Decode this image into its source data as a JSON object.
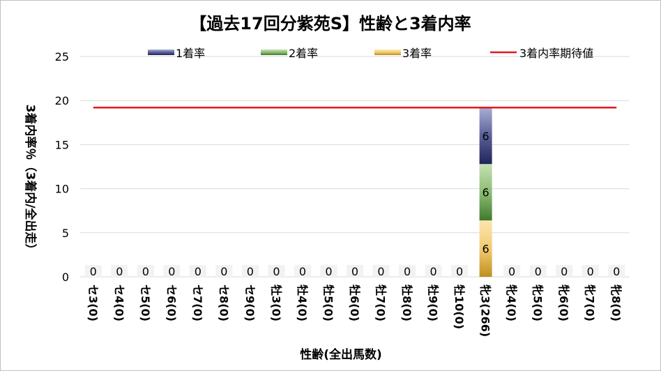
{
  "chart_data": {
    "type": "bar",
    "stacked": true,
    "title": "【過去17回分紫苑S】性齢と3着内率",
    "ylabel": "3着内率％（3着内/全出走）",
    "xlabel": "性齢(全出馬数)",
    "ylim": [
      0,
      25
    ],
    "yticks": [
      0,
      5,
      10,
      15,
      20,
      25
    ],
    "grid": true,
    "legend_position": "top",
    "categories": [
      "セ3(0)",
      "セ4(0)",
      "セ5(0)",
      "セ6(0)",
      "セ7(0)",
      "セ8(0)",
      "セ9(0)",
      "牡3(0)",
      "牡4(0)",
      "牡5(0)",
      "牡6(0)",
      "牡7(0)",
      "牡8(0)",
      "牡9(0)",
      "牡10(0)",
      "牝3(266)",
      "牝4(0)",
      "牝5(0)",
      "牝6(0)",
      "牝7(0)",
      "牝8(0)"
    ],
    "series": [
      {
        "name": "3着率",
        "color": "#d9a32b",
        "values": [
          0,
          0,
          0,
          0,
          0,
          0,
          0,
          0,
          0,
          0,
          0,
          0,
          0,
          0,
          0,
          6.4,
          0,
          0,
          0,
          0,
          0
        ],
        "labels": [
          "0",
          "0",
          "0",
          "0",
          "0",
          "0",
          "0",
          "0",
          "0",
          "0",
          "0",
          "0",
          "0",
          "0",
          "0",
          "6",
          "0",
          "0",
          "0",
          "0",
          "0"
        ]
      },
      {
        "name": "2着率",
        "color": "#6aa84f",
        "values": [
          0,
          0,
          0,
          0,
          0,
          0,
          0,
          0,
          0,
          0,
          0,
          0,
          0,
          0,
          0,
          6.4,
          0,
          0,
          0,
          0,
          0
        ],
        "labels": [
          "",
          "",
          "",
          "",
          "",
          "",
          "",
          "",
          "",
          "",
          "",
          "",
          "",
          "",
          "",
          "6",
          "",
          "",
          "",
          "",
          ""
        ]
      },
      {
        "name": "1着率",
        "color": "#4a5490",
        "values": [
          0,
          0,
          0,
          0,
          0,
          0,
          0,
          0,
          0,
          0,
          0,
          0,
          0,
          0,
          0,
          6.4,
          0,
          0,
          0,
          0,
          0
        ],
        "labels": [
          "",
          "",
          "",
          "",
          "",
          "",
          "",
          "",
          "",
          "",
          "",
          "",
          "",
          "",
          "",
          "6",
          "",
          "",
          "",
          "",
          ""
        ]
      }
    ],
    "line": {
      "name": "3着内率期待値",
      "color": "#e8161b",
      "value": 19.2
    }
  }
}
